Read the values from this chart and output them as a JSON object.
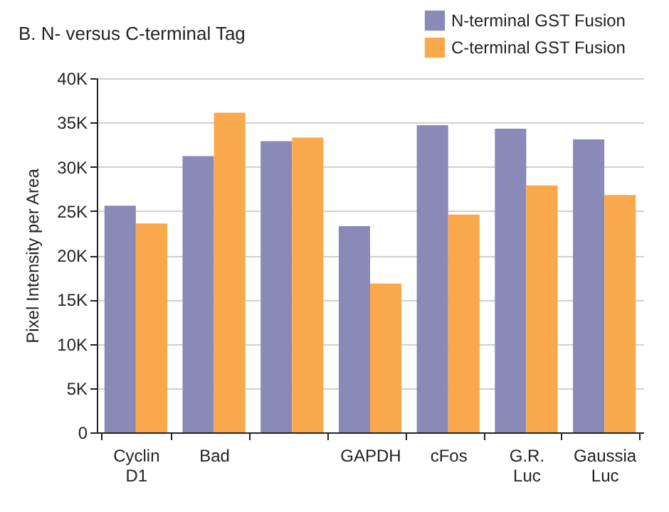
{
  "chart_data": {
    "type": "bar",
    "title": "B. N- versus C-terminal Tag",
    "ylabel": "Pixel Intensity per Area",
    "categories": [
      "Cyclin D1",
      "Bad",
      null,
      "GAPDH",
      "cFos",
      "G.R. Luc",
      "Gaussia Luc"
    ],
    "series": [
      {
        "name": "N-terminal GST Fusion",
        "color": "#8b89b8",
        "values": [
          25600,
          31200,
          32900,
          23300,
          34700,
          34300,
          33100
        ]
      },
      {
        "name": "C-terminal GST Fusion",
        "color": "#f9a94b",
        "values": [
          23600,
          36100,
          33300,
          16800,
          24600,
          27900,
          26800
        ]
      }
    ],
    "ylim": [
      0,
      40000
    ],
    "yticks": [
      0,
      {
        "value": 5000,
        "label": "5K"
      },
      {
        "value": 10000,
        "label": "10K"
      },
      {
        "value": 15000,
        "label": "15K"
      },
      {
        "value": 20000,
        "label": "20K"
      },
      {
        "value": 25000,
        "label": "25K"
      },
      {
        "value": 30000,
        "label": "30K"
      },
      {
        "value": 35000,
        "label": "35K"
      },
      {
        "value": 40000,
        "label": "40K"
      }
    ],
    "grid": "y",
    "legend": "top right"
  }
}
